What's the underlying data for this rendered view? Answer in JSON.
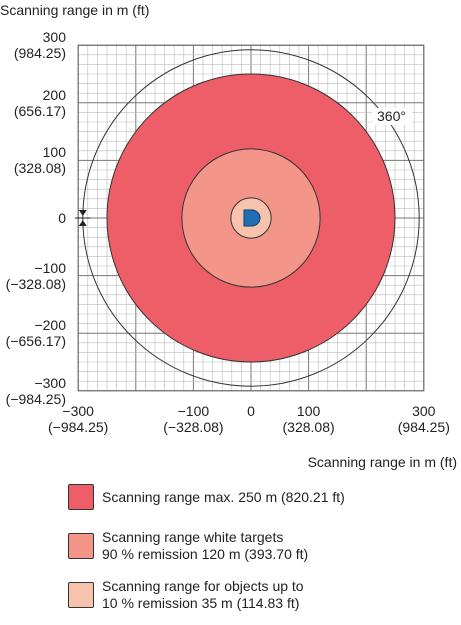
{
  "chart_data": {
    "type": "diagram",
    "unit": "m (ft)",
    "y_axis_title": "Scanning range in m (ft)",
    "x_axis_title": "Scanning range in m (ft)",
    "ylim": [
      -300,
      300
    ],
    "xlim": [
      -300,
      300
    ],
    "grid": true,
    "angle_label": "360°",
    "y_ticks": [
      {
        "value": 300,
        "label": "300",
        "sub": "(984.25)"
      },
      {
        "value": 200,
        "label": "200",
        "sub": "(656.17)"
      },
      {
        "value": 100,
        "label": "100",
        "sub": "(328.08)"
      },
      {
        "value": 0,
        "label": "0",
        "sub": ""
      },
      {
        "value": -100,
        "label": "−100",
        "sub": "(−328.08)"
      },
      {
        "value": -200,
        "label": "−200",
        "sub": "(−656.17)"
      },
      {
        "value": -300,
        "label": "−300",
        "sub": "(−984.25)"
      }
    ],
    "x_ticks": [
      {
        "value": -300,
        "label": "−300",
        "sub": "(−984.25)"
      },
      {
        "value": -100,
        "label": "−100",
        "sub": "(−328.08)"
      },
      {
        "value": 0,
        "label": "0",
        "sub": ""
      },
      {
        "value": 100,
        "label": "100",
        "sub": "(328.08)"
      },
      {
        "value": 300,
        "label": "300",
        "sub": "(984.25)"
      }
    ],
    "ranges": [
      {
        "radius_m": 250,
        "color": "#ee5e68",
        "legend_lines": [
          "Scanning range max. 250 m (820.21 ft)"
        ]
      },
      {
        "radius_m": 120,
        "color": "#f4958a",
        "legend_lines": [
          "Scanning range white targets",
          "90 % remission 120 m (393.70 ft)"
        ]
      },
      {
        "radius_m": 35,
        "color": "#f8c3ac",
        "legend_lines": [
          "Scanning range for objects up to",
          "10 % remission 35 m (114.83 ft)"
        ]
      }
    ],
    "sensor_color": "#1f6fb5"
  }
}
